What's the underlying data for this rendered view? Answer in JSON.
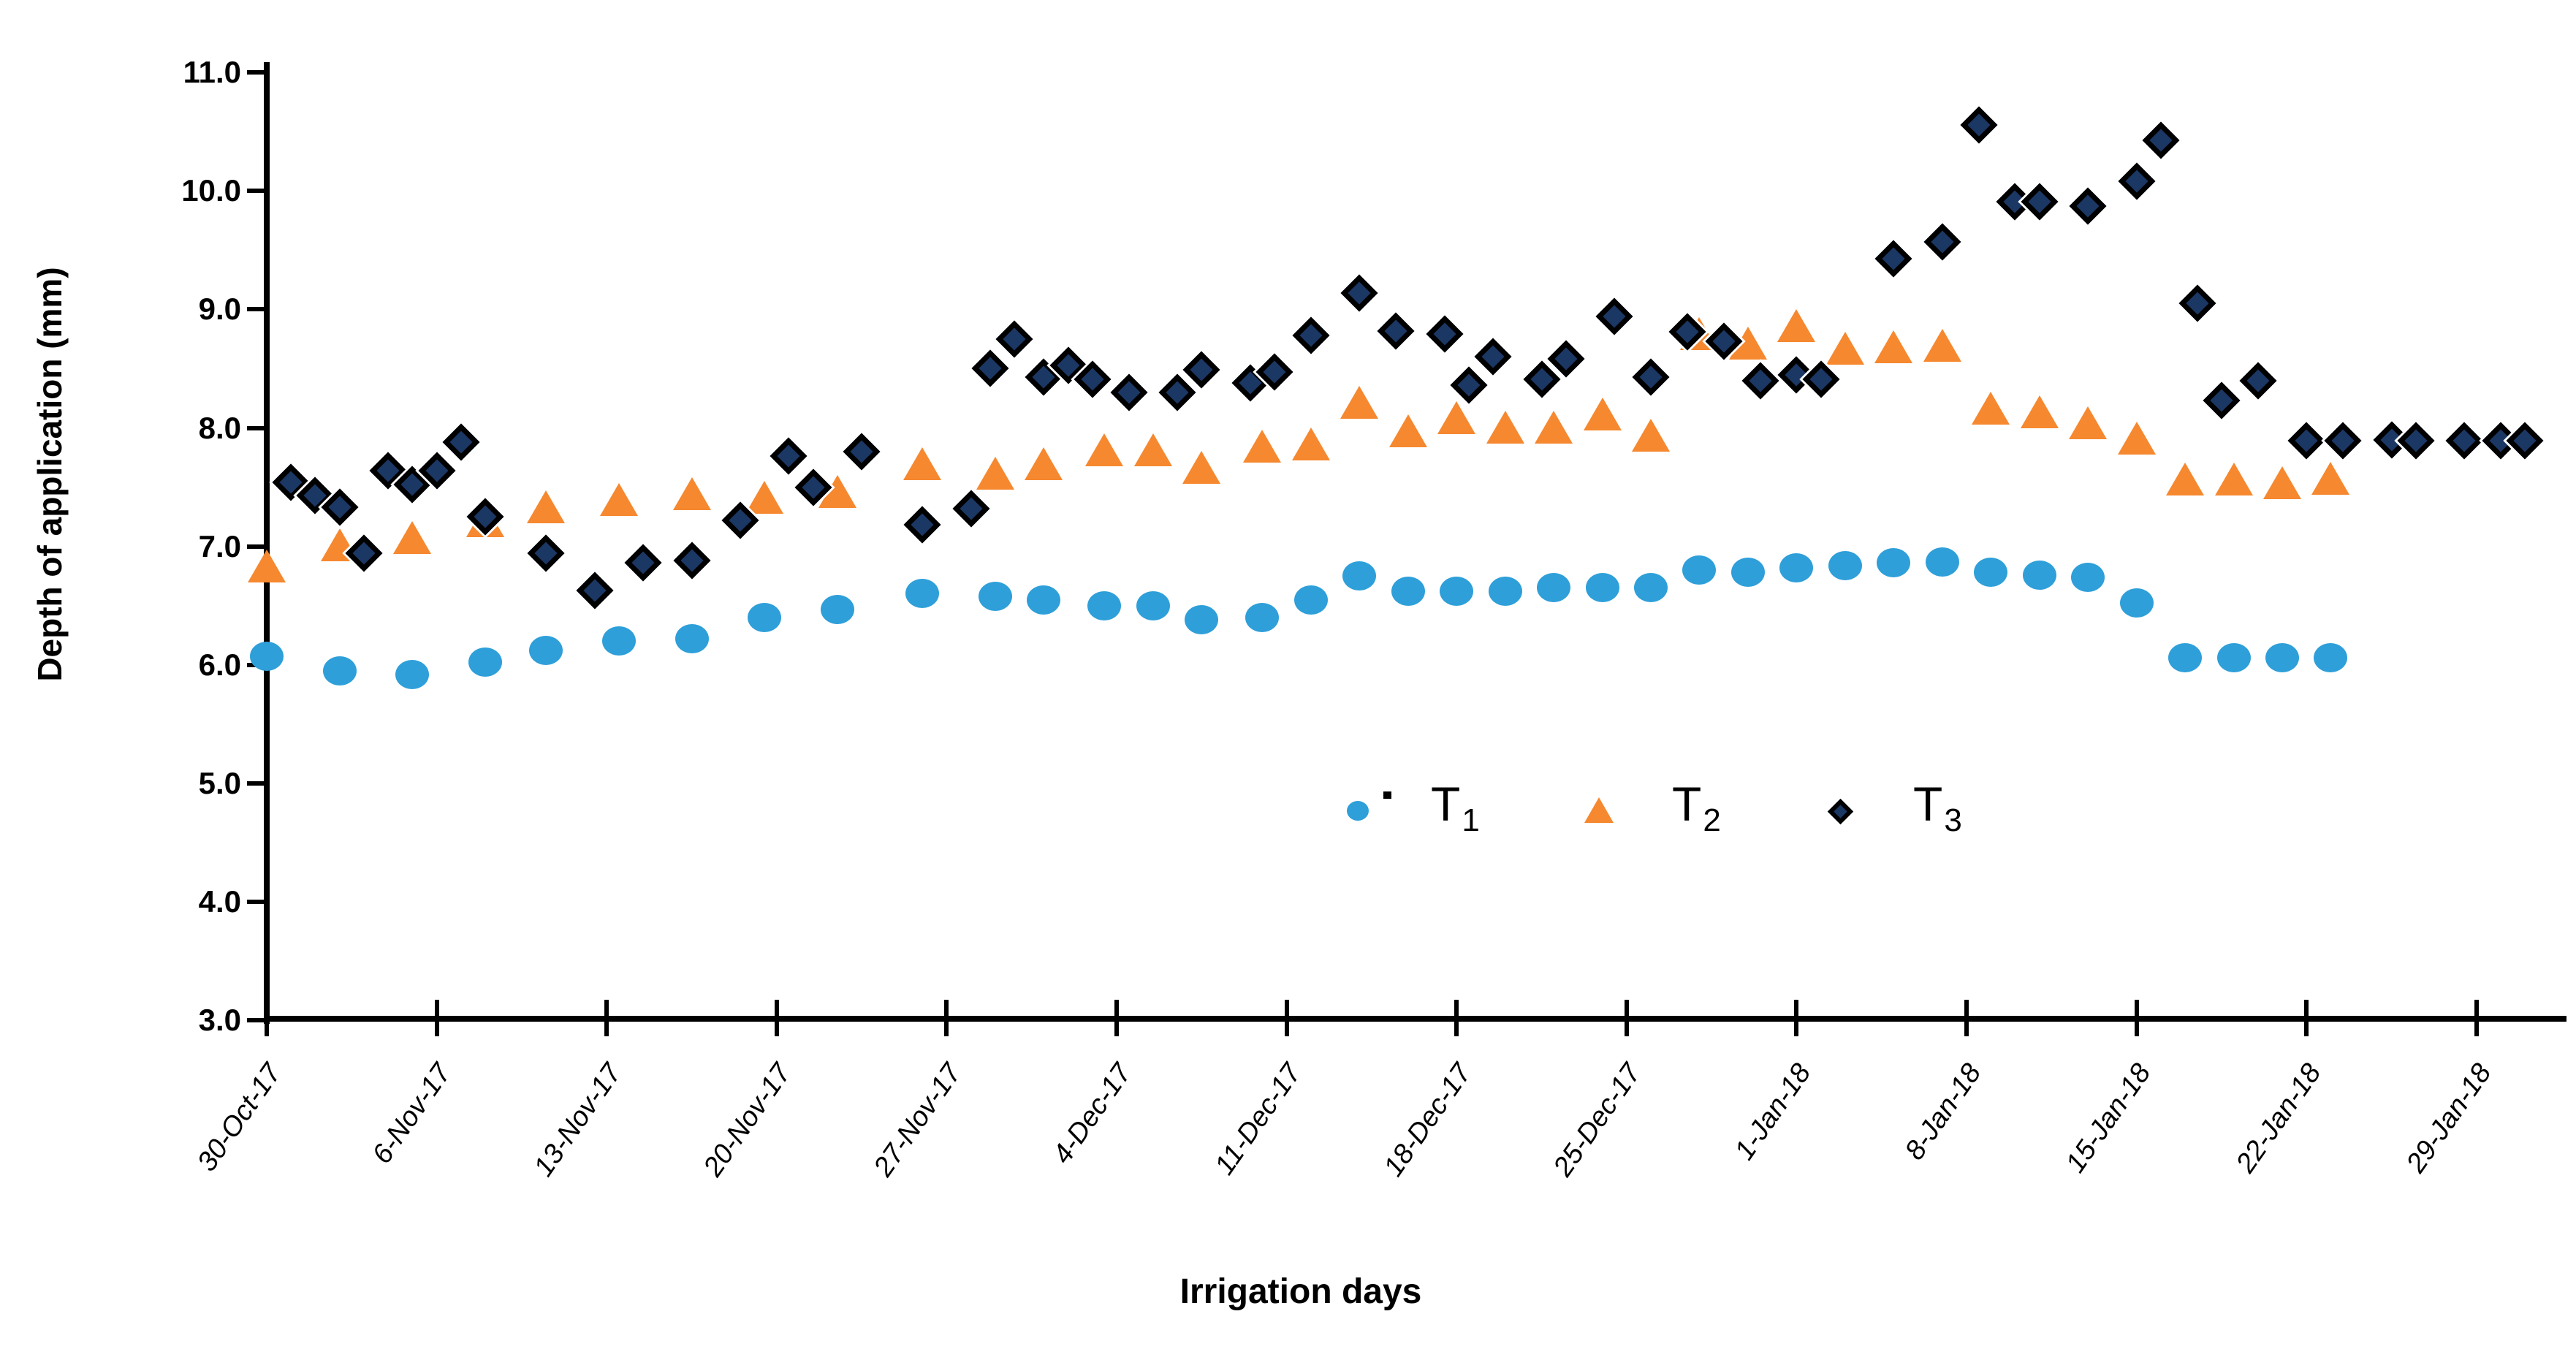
{
  "figure": {
    "background": "#ffffff",
    "x_axis_title": "Irrigation days",
    "y_axis_title": "Depth of application (mm)"
  },
  "chart_data": {
    "type": "scatter",
    "title": "",
    "xlabel": "Irrigation days",
    "ylabel": "Depth of application (mm)",
    "grid": false,
    "ylim": [
      3.0,
      11.0
    ],
    "y_tick_step": 1.0,
    "y_tick_labels": [
      "3.0",
      "4.0",
      "5.0",
      "6.0",
      "7.0",
      "8.0",
      "9.0",
      "10.0",
      "11.0"
    ],
    "x_unit": "days since first tick (weekly ticks)",
    "x_tick_labels": [
      {
        "day": 0,
        "label": "30-Oct-17"
      },
      {
        "day": 7,
        "label": "6-Nov-17"
      },
      {
        "day": 14,
        "label": "13-Nov-17"
      },
      {
        "day": 21,
        "label": "20-Nov-17"
      },
      {
        "day": 28,
        "label": "27-Nov-17"
      },
      {
        "day": 35,
        "label": "4-Dec-17"
      },
      {
        "day": 42,
        "label": "11-Dec-17"
      },
      {
        "day": 49,
        "label": "18-Dec-17"
      },
      {
        "day": 56,
        "label": "25-Dec-17"
      },
      {
        "day": 63,
        "label": "1-Jan-18"
      },
      {
        "day": 70,
        "label": "8-Jan-18"
      },
      {
        "day": 77,
        "label": "15-Jan-18"
      },
      {
        "day": 84,
        "label": "22-Jan-18"
      },
      {
        "day": 91,
        "label": "29-Jan-18"
      }
    ],
    "legend": {
      "position": "inside-center-right",
      "items": [
        {
          "label": "T",
          "subscript": "1",
          "marker": "circle",
          "color": "#2E9FD9"
        },
        {
          "label": "T",
          "subscript": "2",
          "marker": "triangle",
          "color": "#F6882F"
        },
        {
          "label": "T",
          "subscript": "3",
          "marker": "diamond",
          "color": "#1B3764"
        }
      ]
    },
    "series": [
      {
        "name": "T1",
        "marker": "circle",
        "color": "#2E9FD9",
        "points": [
          [
            0,
            6.07
          ],
          [
            3,
            5.95
          ],
          [
            6,
            5.92
          ],
          [
            9,
            6.02
          ],
          [
            11.5,
            6.12
          ],
          [
            14.5,
            6.2
          ],
          [
            17.5,
            6.22
          ],
          [
            20.5,
            6.4
          ],
          [
            23.5,
            6.47
          ],
          [
            27,
            6.6
          ],
          [
            30,
            6.58
          ],
          [
            32,
            6.55
          ],
          [
            34.5,
            6.5
          ],
          [
            36.5,
            6.5
          ],
          [
            38.5,
            6.38
          ],
          [
            41,
            6.4
          ],
          [
            43,
            6.55
          ],
          [
            45,
            6.75
          ],
          [
            47,
            6.62
          ],
          [
            49,
            6.62
          ],
          [
            51,
            6.62
          ],
          [
            53,
            6.65
          ],
          [
            55,
            6.65
          ],
          [
            57,
            6.65
          ],
          [
            59,
            6.8
          ],
          [
            61,
            6.78
          ],
          [
            63,
            6.82
          ],
          [
            65,
            6.84
          ],
          [
            67,
            6.86
          ],
          [
            69,
            6.87
          ],
          [
            71,
            6.78
          ],
          [
            73,
            6.76
          ],
          [
            75,
            6.74
          ],
          [
            77,
            6.52
          ],
          [
            79,
            6.06
          ],
          [
            81,
            6.06
          ],
          [
            83,
            6.06
          ],
          [
            85,
            6.06
          ]
        ]
      },
      {
        "name": "T2",
        "marker": "triangle",
        "color": "#F6882F",
        "points": [
          [
            0,
            6.82
          ],
          [
            3,
            7.0
          ],
          [
            6,
            7.06
          ],
          [
            9,
            7.2
          ],
          [
            11.5,
            7.32
          ],
          [
            14.5,
            7.38
          ],
          [
            17.5,
            7.43
          ],
          [
            20.5,
            7.4
          ],
          [
            23.5,
            7.45
          ],
          [
            27,
            7.68
          ],
          [
            30,
            7.6
          ],
          [
            32,
            7.68
          ],
          [
            34.5,
            7.8
          ],
          [
            36.5,
            7.8
          ],
          [
            38.5,
            7.65
          ],
          [
            41,
            7.83
          ],
          [
            43,
            7.85
          ],
          [
            45,
            8.2
          ],
          [
            47,
            7.96
          ],
          [
            49,
            8.07
          ],
          [
            51,
            7.99
          ],
          [
            53,
            7.99
          ],
          [
            55,
            8.1
          ],
          [
            57,
            7.92
          ],
          [
            59,
            8.78
          ],
          [
            61,
            8.7
          ],
          [
            63,
            8.85
          ],
          [
            65,
            8.66
          ],
          [
            67,
            8.67
          ],
          [
            69,
            8.68
          ],
          [
            71,
            8.15
          ],
          [
            73,
            8.12
          ],
          [
            75,
            8.03
          ],
          [
            77,
            7.9
          ],
          [
            79,
            7.55
          ],
          [
            81,
            7.55
          ],
          [
            83,
            7.52
          ],
          [
            85,
            7.56
          ]
        ]
      },
      {
        "name": "T3",
        "marker": "diamond",
        "color": "#1B3764",
        "points": [
          [
            1,
            7.54
          ],
          [
            2,
            7.43
          ],
          [
            3,
            7.33
          ],
          [
            4,
            6.94
          ],
          [
            5,
            7.64
          ],
          [
            6,
            7.52
          ],
          [
            7,
            7.64
          ],
          [
            8,
            7.88
          ],
          [
            9,
            7.25
          ],
          [
            11.5,
            6.94
          ],
          [
            13.5,
            6.63
          ],
          [
            15.5,
            6.86
          ],
          [
            17.5,
            6.88
          ],
          [
            19.5,
            7.22
          ],
          [
            21.5,
            7.76
          ],
          [
            22.5,
            7.5
          ],
          [
            24.5,
            7.8
          ],
          [
            27,
            7.18
          ],
          [
            29,
            7.32
          ],
          [
            29.8,
            8.5
          ],
          [
            30.8,
            8.75
          ],
          [
            32,
            8.43
          ],
          [
            33,
            8.53
          ],
          [
            34,
            8.41
          ],
          [
            35.5,
            8.3
          ],
          [
            37.5,
            8.3
          ],
          [
            38.5,
            8.49
          ],
          [
            40.5,
            8.38
          ],
          [
            41.5,
            8.47
          ],
          [
            43,
            8.78
          ],
          [
            45,
            9.14
          ],
          [
            46.5,
            8.82
          ],
          [
            48.5,
            8.79
          ],
          [
            49.5,
            8.36
          ],
          [
            50.5,
            8.6
          ],
          [
            52.5,
            8.41
          ],
          [
            53.5,
            8.58
          ],
          [
            55.5,
            8.94
          ],
          [
            57,
            8.43
          ],
          [
            58.5,
            8.81
          ],
          [
            60,
            8.73
          ],
          [
            61.5,
            8.4
          ],
          [
            63,
            8.45
          ],
          [
            64,
            8.41
          ],
          [
            67,
            9.43
          ],
          [
            69,
            9.57
          ],
          [
            70.5,
            10.56
          ],
          [
            72,
            9.91
          ],
          [
            73,
            9.91
          ],
          [
            75,
            9.87
          ],
          [
            77,
            10.08
          ],
          [
            78,
            10.43
          ],
          [
            79.5,
            9.05
          ],
          [
            80.5,
            8.23
          ],
          [
            82,
            8.4
          ],
          [
            84,
            7.89
          ],
          [
            85.5,
            7.89
          ],
          [
            87.5,
            7.9
          ],
          [
            88.5,
            7.89
          ],
          [
            90.5,
            7.89
          ],
          [
            92,
            7.89
          ],
          [
            93,
            7.89
          ]
        ]
      }
    ]
  }
}
